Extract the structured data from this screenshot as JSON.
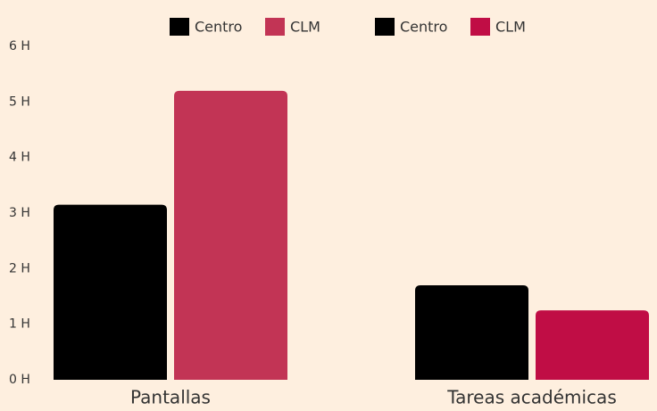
{
  "chart_data": {
    "type": "bar",
    "categories": [
      "Pantallas",
      "Tareas académicas"
    ],
    "series": [
      {
        "name": "Centro",
        "color": "#000000",
        "values": [
          3.15,
          null
        ]
      },
      {
        "name": "CLM",
        "color": "#c23455",
        "values": [
          5.2,
          null
        ]
      },
      {
        "name": "Centro",
        "color": "#000000",
        "values": [
          null,
          1.7
        ]
      },
      {
        "name": "CLM",
        "color": "#c00d45",
        "values": [
          null,
          1.25
        ]
      }
    ],
    "ylim": [
      0,
      6
    ],
    "yticks": [
      {
        "value": 0,
        "label": "0 H"
      },
      {
        "value": 1,
        "label": "1 H"
      },
      {
        "value": 2,
        "label": "2 H"
      },
      {
        "value": 3,
        "label": "3 H"
      },
      {
        "value": 4,
        "label": "4 H"
      },
      {
        "value": 5,
        "label": "5 H"
      },
      {
        "value": 6,
        "label": "6 H"
      }
    ],
    "legend": "top"
  }
}
